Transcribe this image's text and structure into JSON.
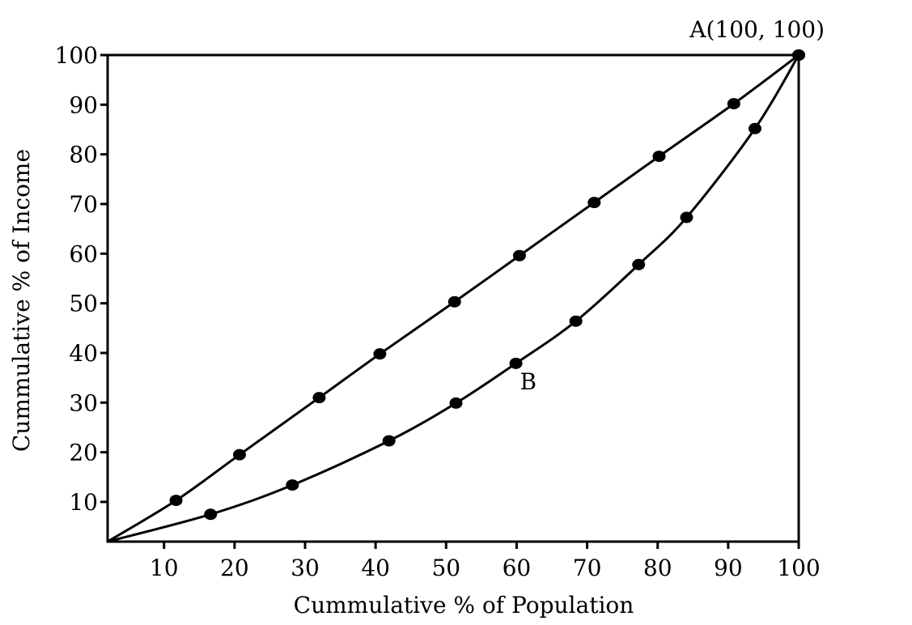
{
  "chart_data": {
    "type": "line",
    "title": "",
    "xlabel": "Cummulative % of Population",
    "ylabel": "Cummulative % of Income",
    "xlim": [
      2,
      100
    ],
    "ylim": [
      2,
      100
    ],
    "x_ticks": [
      "10",
      "20",
      "30",
      "40",
      "50",
      "60",
      "70",
      "80",
      "90",
      "100"
    ],
    "y_ticks": [
      "10",
      "20",
      "30",
      "40",
      "50",
      "60",
      "70",
      "80",
      "90",
      "100"
    ],
    "grid": false,
    "legend": "none",
    "series": [
      {
        "points": [
          [
            2,
            2
          ],
          [
            11.7,
            10.3
          ],
          [
            20.7,
            19.5
          ],
          [
            32,
            31
          ],
          [
            40.6,
            39.8
          ],
          [
            51.2,
            50.3
          ],
          [
            60.4,
            59.6
          ],
          [
            71,
            70.3
          ],
          [
            80.2,
            79.6
          ],
          [
            90.8,
            90.2
          ],
          [
            100,
            100
          ]
        ]
      },
      {
        "points": [
          [
            2,
            2
          ],
          [
            16.6,
            7.5
          ],
          [
            28.2,
            13.4
          ],
          [
            41.9,
            22.3
          ],
          [
            51.4,
            29.9
          ],
          [
            59.9,
            37.9
          ],
          [
            68.4,
            46.4
          ],
          [
            77.3,
            57.8
          ],
          [
            84.1,
            67.3
          ],
          [
            93.8,
            85.2
          ],
          [
            100,
            100
          ]
        ]
      }
    ],
    "annotations": [
      {
        "text": "A(100, 100)",
        "x": 100,
        "y": 100
      },
      {
        "text": "B",
        "x": 59.9,
        "y": 37.9
      }
    ]
  }
}
